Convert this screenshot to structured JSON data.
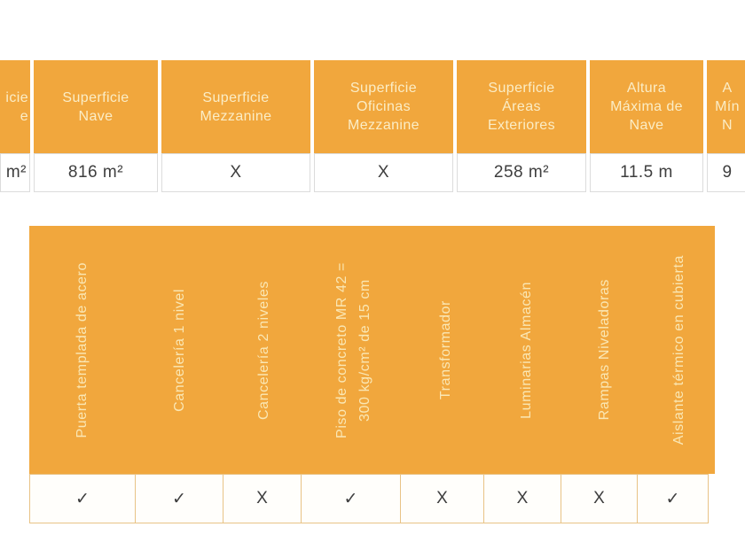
{
  "colors": {
    "orange": "#F1A73D",
    "header_text": "#FBEDC6",
    "rotated_text": "#FAE7B4",
    "value_text": "#3E3E3E",
    "spec_border": "#DCDCDC",
    "feature_border": "#E8C386"
  },
  "spec_table": {
    "columns": [
      {
        "label": "icie\ne",
        "value": "m²"
      },
      {
        "label": "Superficie\nNave",
        "value": "816 m²"
      },
      {
        "label": "Superficie\nMezzanine",
        "value": "X"
      },
      {
        "label": "Superficie\nOficinas\nMezzanine",
        "value": "X"
      },
      {
        "label": "Superficie\nÁreas\nExteriores",
        "value": "258 m²"
      },
      {
        "label": "Altura\nMáxima de\nNave",
        "value": "11.5 m"
      },
      {
        "label": "A\nMín\nN",
        "value": "9"
      }
    ]
  },
  "feature_table": {
    "columns": [
      {
        "label": "Puerta templada de acero",
        "value": "✓"
      },
      {
        "label": "Cancelería 1 nivel",
        "value": "✓"
      },
      {
        "label": "Cancelería 2 niveles",
        "value": "X"
      },
      {
        "label": "Piso de concreto MR 42 =\n300 kg/cm² de 15 cm",
        "value": "✓"
      },
      {
        "label": "Transformador",
        "value": "X"
      },
      {
        "label": "Luminarias Almacén",
        "value": "X"
      },
      {
        "label": "Rampas Niveladoras",
        "value": "X"
      },
      {
        "label": "Aislante térmico en cubierta",
        "value": "✓"
      }
    ]
  }
}
